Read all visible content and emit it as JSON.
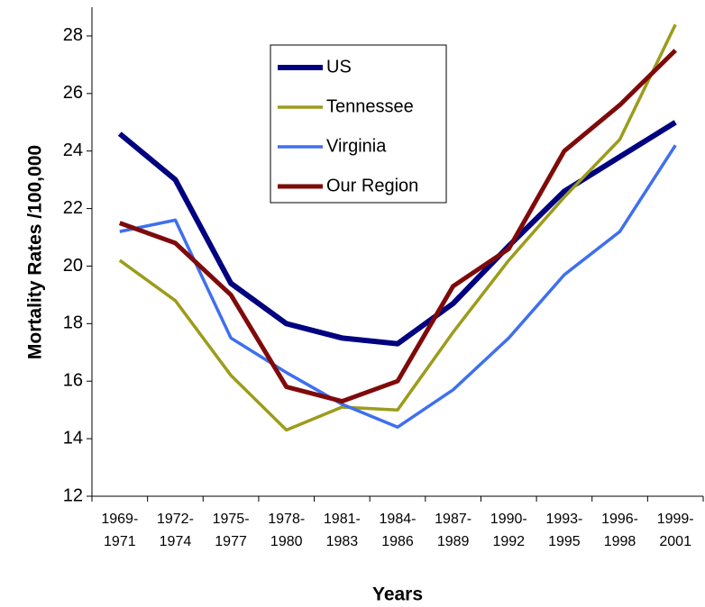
{
  "chart_data": {
    "type": "line",
    "x_label": "Years",
    "y_label": "Mortality Rates /100,000",
    "categories": [
      "1969-1971",
      "1972-1974",
      "1975-1977",
      "1978-1980",
      "1981-1983",
      "1984-1986",
      "1987-1989",
      "1990-1992",
      "1993-1995",
      "1996-1998",
      "1999-2001"
    ],
    "series": [
      {
        "name": "US",
        "color": "#000080",
        "line_width": 6,
        "values": [
          24.6,
          23.0,
          19.4,
          18.0,
          17.5,
          17.3,
          18.7,
          20.7,
          22.6,
          23.8,
          25.0
        ]
      },
      {
        "name": "Tennessee",
        "color": "#9c9c1c",
        "line_width": 3.5,
        "values": [
          20.2,
          18.8,
          16.2,
          14.3,
          15.1,
          15.0,
          17.7,
          20.2,
          22.4,
          24.4,
          28.4
        ]
      },
      {
        "name": "Virginia",
        "color": "#3f6ff0",
        "line_width": 3.5,
        "values": [
          21.2,
          21.6,
          17.5,
          16.3,
          15.2,
          14.4,
          15.7,
          17.5,
          19.7,
          21.2,
          24.2
        ]
      },
      {
        "name": "Our Region",
        "color": "#7f0a0a",
        "line_width": 5,
        "values": [
          21.5,
          20.8,
          19.0,
          15.8,
          15.3,
          16.0,
          19.3,
          20.6,
          24.0,
          25.6,
          27.5
        ]
      }
    ],
    "ylim": [
      12,
      29
    ],
    "yticks": [
      12,
      14,
      16,
      18,
      20,
      22,
      24,
      26,
      28
    ]
  }
}
